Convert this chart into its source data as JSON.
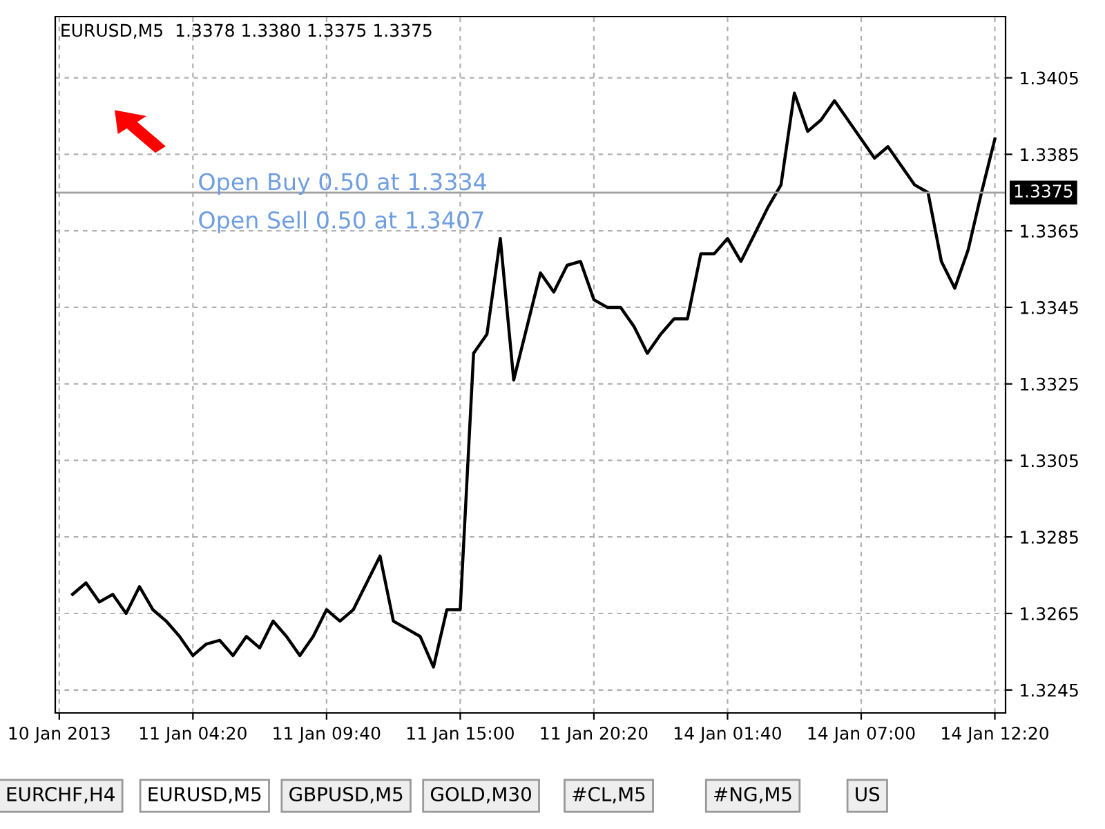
{
  "chart_data": {
    "type": "line",
    "title": "EURUSD,M5  1.3378 1.3380 1.3375 1.3375",
    "annotations": [
      "Open Buy 0.50 at 1.3334",
      "Open Sell 0.50 at 1.3407",
      "EURCHF,H4",
      "EURUSD,M5",
      "GBPUSD,M5",
      "GOLD,M30",
      "#CL,M5",
      "#NG,M5",
      "US"
    ],
    "categories": [
      "10 Jan 2013",
      null,
      null,
      null,
      null,
      null,
      null,
      null,
      null,
      null,
      "11 Jan 04:20",
      null,
      null,
      null,
      null,
      null,
      null,
      null,
      null,
      null,
      "11 Jan 09:40",
      null,
      null,
      null,
      null,
      null,
      null,
      null,
      null,
      null,
      "11 Jan 15:00",
      null,
      null,
      null,
      null,
      null,
      null,
      null,
      null,
      null,
      "11 Jan 20:20",
      null,
      null,
      null,
      null,
      null,
      null,
      null,
      null,
      null,
      "14 Jan 01:40",
      null,
      null,
      null,
      null,
      null,
      null,
      null,
      null,
      null,
      "14 Jan 07:00",
      null,
      null,
      null,
      null,
      null,
      null,
      null,
      null,
      null,
      "14 Jan 12:20"
    ],
    "series": [
      {
        "color": "#000000",
        "values": [
          null,
          1.327,
          1.3273,
          1.3268,
          1.327,
          1.3265,
          1.3272,
          1.3266,
          1.3263,
          1.3259,
          1.3254,
          1.3257,
          1.3258,
          1.3254,
          1.3259,
          1.3256,
          1.3263,
          1.3259,
          1.3254,
          1.3259,
          1.3266,
          1.3263,
          1.3266,
          1.3273,
          1.328,
          1.3263,
          1.3261,
          1.3259,
          1.3251,
          1.3266,
          1.3266,
          1.3333,
          1.3338,
          1.3363,
          1.3326,
          1.334,
          1.3354,
          1.3349,
          1.3356,
          1.3357,
          1.3347,
          1.3345,
          1.3345,
          1.334,
          1.3333,
          1.3338,
          1.3342,
          1.3342,
          1.3359,
          1.3359,
          1.3363,
          1.3357,
          1.3364,
          1.3371,
          1.3377,
          1.3401,
          1.3391,
          1.3394,
          1.3399,
          1.3394,
          1.3389,
          1.3384,
          1.3387,
          1.3382,
          1.3377,
          1.3375,
          1.3357,
          1.335,
          1.336,
          1.3375,
          1.3389
        ]
      }
    ],
    "ylim": [
      1.3239,
      1.3421
    ],
    "yticks": [
      1.3245,
      1.3265,
      1.3285,
      1.3305,
      1.3325,
      1.3345,
      1.3365,
      1.3385,
      1.3405
    ],
    "ref_lines": [
      {
        "axis": "y",
        "value": 1.3375,
        "label": "1.3375",
        "color": "#a0a0a0"
      }
    ],
    "grid": true,
    "marker": "none",
    "line_style": "solid"
  }
}
